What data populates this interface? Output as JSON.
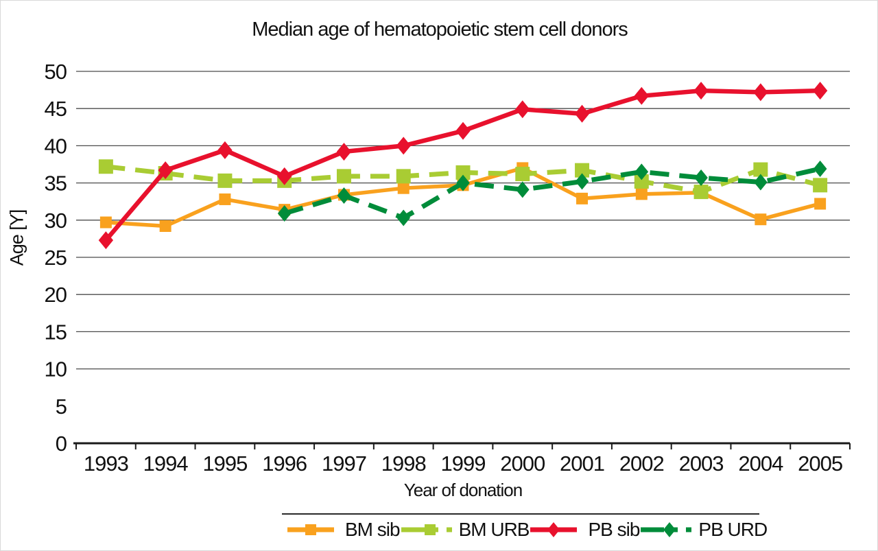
{
  "chart_data": {
    "type": "line",
    "title": "Median age of hematopoietic stem cell donors",
    "xlabel": "Year of donation",
    "ylabel": "Age [Y]",
    "x": [
      1993,
      1994,
      1995,
      1996,
      1997,
      1998,
      1999,
      2000,
      2001,
      2002,
      2003,
      2004,
      2005
    ],
    "ylim": [
      0,
      50
    ],
    "yticks": [
      0,
      5,
      10,
      15,
      20,
      25,
      30,
      35,
      40,
      45,
      50
    ],
    "gridlines_at": [
      10,
      15,
      20,
      25,
      30,
      35,
      40,
      45,
      50
    ],
    "grid": true,
    "legend_position": "bottom",
    "series": [
      {
        "name": "BM sib",
        "color": "#F9A11E",
        "line_style": "solid",
        "marker": "square",
        "values": [
          29.7,
          29.2,
          32.8,
          31.4,
          33.4,
          34.3,
          34.7,
          37.0,
          32.9,
          33.5,
          33.7,
          30.1,
          32.2
        ]
      },
      {
        "name": "BM URB",
        "color": "#A9CC33",
        "line_style": "dashed",
        "marker": "square",
        "values": [
          37.2,
          36.3,
          35.3,
          35.3,
          35.9,
          35.9,
          36.4,
          36.2,
          36.7,
          35.2,
          33.8,
          36.8,
          34.7
        ]
      },
      {
        "name": "PB sib",
        "color": "#E8112D",
        "line_style": "solid",
        "marker": "diamond",
        "values": [
          27.3,
          36.7,
          39.4,
          35.9,
          39.2,
          40.0,
          42.0,
          44.9,
          44.3,
          46.7,
          47.4,
          47.2,
          47.4
        ]
      },
      {
        "name": "PB URD",
        "color": "#008C3A",
        "line_style": "dashed",
        "marker": "diamond",
        "values": [
          null,
          null,
          null,
          30.9,
          33.3,
          30.3,
          35.0,
          34.1,
          35.2,
          36.5,
          35.7,
          35.1,
          36.9
        ]
      }
    ]
  }
}
